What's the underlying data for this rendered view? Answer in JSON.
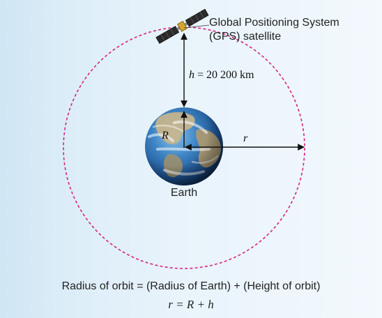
{
  "satellite_label_line1": "Global Positioning System",
  "satellite_label_line2": "(GPS) satellite",
  "height_var": "h",
  "height_value": "= 20 200 km",
  "earth_radius_label": "R",
  "orbit_radius_label": "r",
  "earth_label": "Earth",
  "caption": "Radius of orbit = (Radius of Earth) + (Height of orbit)",
  "formula": "r = R + h",
  "colors": {
    "orbit": "#d6237f",
    "arrows": "#111111",
    "background": "#e8f3fb"
  }
}
